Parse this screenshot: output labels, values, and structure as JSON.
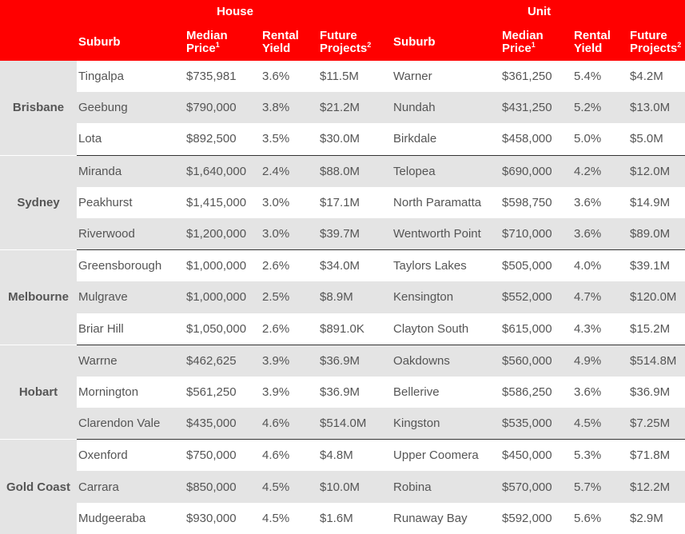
{
  "header": {
    "house": "House",
    "unit": "Unit",
    "suburb": "Suburb",
    "median": "Median",
    "price": "Price",
    "price_note": "1",
    "rental": "Rental",
    "yield": "Yield",
    "future": "Future",
    "projects": "Projects",
    "projects_note": "2"
  },
  "groups": [
    {
      "city": "Brisbane",
      "rows": [
        {
          "h_suburb": "Tingalpa",
          "h_price": "$735,981",
          "h_yield": "3.6%",
          "h_proj": "$11.5M",
          "u_suburb": "Warner",
          "u_price": "$361,250",
          "u_yield": "5.4%",
          "u_proj": "$4.2M"
        },
        {
          "h_suburb": "Geebung",
          "h_price": "$790,000",
          "h_yield": "3.8%",
          "h_proj": "$21.2M",
          "u_suburb": "Nundah",
          "u_price": "$431,250",
          "u_yield": "5.2%",
          "u_proj": "$13.0M"
        },
        {
          "h_suburb": "Lota",
          "h_price": "$892,500",
          "h_yield": "3.5%",
          "h_proj": "$30.0M",
          "u_suburb": "Birkdale",
          "u_price": "$458,000",
          "u_yield": "5.0%",
          "u_proj": "$5.0M"
        }
      ]
    },
    {
      "city": "Sydney",
      "rows": [
        {
          "h_suburb": "Miranda",
          "h_price": "$1,640,000",
          "h_yield": "2.4%",
          "h_proj": "$88.0M",
          "u_suburb": "Telopea",
          "u_price": "$690,000",
          "u_yield": "4.2%",
          "u_proj": "$12.0M"
        },
        {
          "h_suburb": "Peakhurst",
          "h_price": "$1,415,000",
          "h_yield": "3.0%",
          "h_proj": "$17.1M",
          "u_suburb": "North Paramatta",
          "u_price": "$598,750",
          "u_yield": "3.6%",
          "u_proj": "$14.9M"
        },
        {
          "h_suburb": "Riverwood",
          "h_price": "$1,200,000",
          "h_yield": "3.0%",
          "h_proj": "$39.7M",
          "u_suburb": "Wentworth Point",
          "u_price": "$710,000",
          "u_yield": "3.6%",
          "u_proj": "$89.0M"
        }
      ]
    },
    {
      "city": "Melbourne",
      "rows": [
        {
          "h_suburb": "Greensborough",
          "h_price": "$1,000,000",
          "h_yield": "2.6%",
          "h_proj": "$34.0M",
          "u_suburb": "Taylors Lakes",
          "u_price": "$505,000",
          "u_yield": "4.0%",
          "u_proj": "$39.1M"
        },
        {
          "h_suburb": "Mulgrave",
          "h_price": "$1,000,000",
          "h_yield": "2.5%",
          "h_proj": "$8.9M",
          "u_suburb": "Kensington",
          "u_price": "$552,000",
          "u_yield": "4.7%",
          "u_proj": "$120.0M"
        },
        {
          "h_suburb": "Briar Hill",
          "h_price": "$1,050,000",
          "h_yield": "2.6%",
          "h_proj": "$891.0K",
          "u_suburb": "Clayton South",
          "u_price": "$615,000",
          "u_yield": "4.3%",
          "u_proj": "$15.2M"
        }
      ]
    },
    {
      "city": "Hobart",
      "rows": [
        {
          "h_suburb": "Warrne",
          "h_price": "$462,625",
          "h_yield": "3.9%",
          "h_proj": "$36.9M",
          "u_suburb": "Oakdowns",
          "u_price": "$560,000",
          "u_yield": "4.9%",
          "u_proj": "$514.8M"
        },
        {
          "h_suburb": "Mornington",
          "h_price": "$561,250",
          "h_yield": "3.9%",
          "h_proj": "$36.9M",
          "u_suburb": "Bellerive",
          "u_price": "$586,250",
          "u_yield": "3.6%",
          "u_proj": "$36.9M"
        },
        {
          "h_suburb": "Clarendon Vale",
          "h_price": "$435,000",
          "h_yield": "4.6%",
          "h_proj": "$514.0M",
          "u_suburb": "Kingston",
          "u_price": "$535,000",
          "u_yield": "4.5%",
          "u_proj": "$7.25M"
        }
      ]
    },
    {
      "city": "Gold Coast",
      "rows": [
        {
          "h_suburb": "Oxenford",
          "h_price": "$750,000",
          "h_yield": "4.6%",
          "h_proj": "$4.8M",
          "u_suburb": "Upper Coomera",
          "u_price": "$450,000",
          "u_yield": "5.3%",
          "u_proj": "$71.8M"
        },
        {
          "h_suburb": "Carrara",
          "h_price": "$850,000",
          "h_yield": "4.5%",
          "h_proj": "$10.0M",
          "u_suburb": "Robina",
          "u_price": "$570,000",
          "u_yield": "5.7%",
          "u_proj": "$12.2M"
        },
        {
          "h_suburb": "Mudgeeraba",
          "h_price": "$930,000",
          "h_yield": "4.5%",
          "h_proj": "$1.6M",
          "u_suburb": "Runaway Bay",
          "u_price": "$592,000",
          "u_yield": "5.6%",
          "u_proj": "$2.9M"
        }
      ]
    }
  ]
}
